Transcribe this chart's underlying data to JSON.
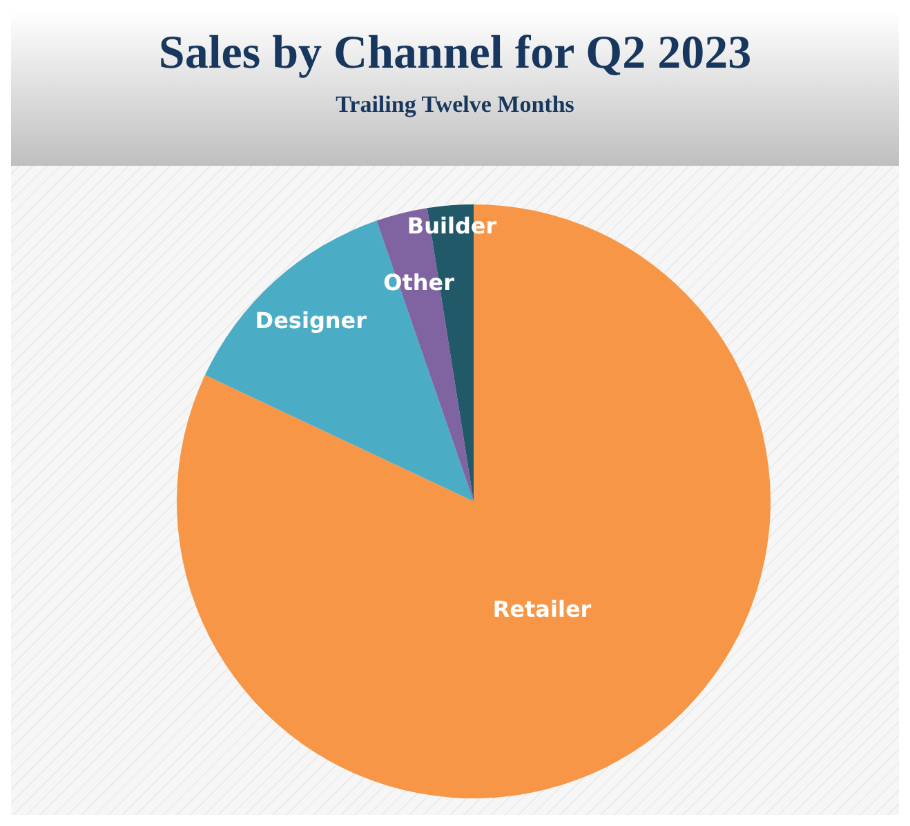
{
  "chart_data": {
    "type": "pie",
    "title": "Sales by Channel for Q2 2023",
    "subtitle": "Trailing Twelve Months",
    "categories": [
      "Retailer",
      "Designer",
      "Other",
      "Builder"
    ],
    "values": [
      82,
      12.7,
      2.8,
      2.5
    ],
    "colors": [
      "#f79646",
      "#4bacc6",
      "#8064a2",
      "#215968"
    ],
    "legend": false
  }
}
